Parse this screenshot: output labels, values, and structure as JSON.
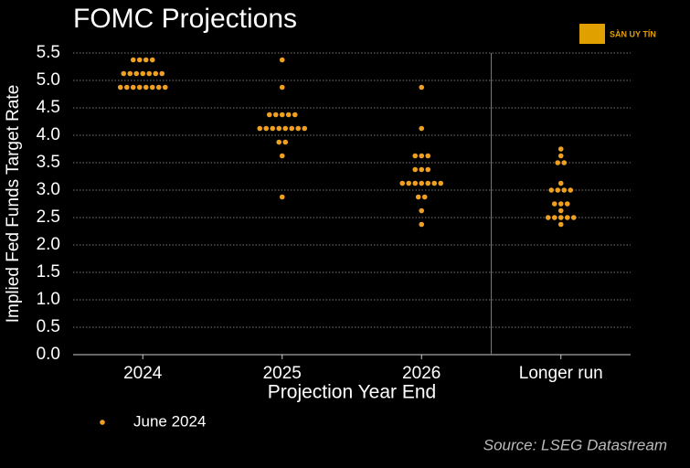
{
  "chart_data": {
    "type": "dot",
    "title": "FOMC Projections",
    "watermark": "SÀN UY TÍN",
    "ylabel": "Implied Fed Funds Target Rate",
    "xlabel": "Projection Year End",
    "source": "Source: LSEG Datastream",
    "categories": [
      "2024",
      "2025",
      "2026",
      "Longer run"
    ],
    "series": [
      {
        "name": "June 2024",
        "color": "#f0a020",
        "values": [
          [
            5.375,
            5.375,
            5.375,
            5.375,
            5.125,
            5.125,
            5.125,
            5.125,
            5.125,
            5.125,
            5.125,
            4.875,
            4.875,
            4.875,
            4.875,
            4.875,
            4.875,
            4.875,
            4.875
          ],
          [
            5.375,
            4.875,
            4.375,
            4.375,
            4.375,
            4.375,
            4.375,
            4.125,
            4.125,
            4.125,
            4.125,
            4.125,
            4.125,
            4.125,
            4.125,
            3.875,
            3.875,
            3.625,
            2.875
          ],
          [
            4.875,
            4.125,
            3.625,
            3.625,
            3.625,
            3.375,
            3.375,
            3.375,
            3.125,
            3.125,
            3.125,
            3.125,
            3.125,
            3.125,
            3.125,
            2.875,
            2.875,
            2.625,
            2.375
          ],
          [
            3.75,
            3.625,
            3.5,
            3.5,
            3.125,
            3.0,
            3.0,
            3.0,
            3.0,
            2.75,
            2.75,
            2.75,
            2.625,
            2.5,
            2.5,
            2.5,
            2.5,
            2.5,
            2.375
          ]
        ]
      }
    ],
    "ylim": [
      0,
      5.5
    ],
    "yticks": [
      {
        "value": 0,
        "label": "0.0"
      },
      0.5,
      {
        "value": 1,
        "label": "1.0"
      },
      1.5,
      {
        "value": 2,
        "label": "2.0"
      },
      2.5,
      {
        "value": 3,
        "label": "3.0"
      },
      3.5,
      {
        "value": 4,
        "label": "4.0"
      },
      4.5,
      {
        "value": 5,
        "label": "5.0"
      },
      5.5
    ],
    "grid": true
  }
}
